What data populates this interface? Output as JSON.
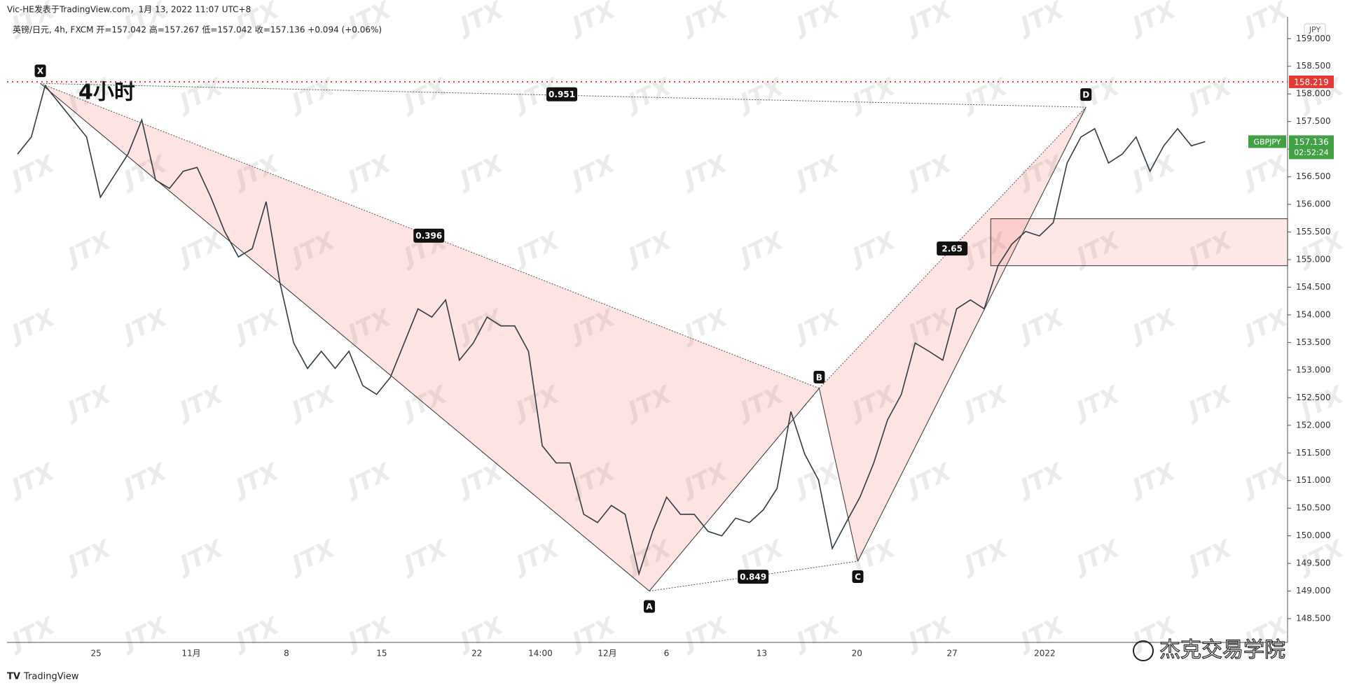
{
  "header": {
    "byline": "Vic-HE发表于TradingView.com，1月 13, 2022 11:07 UTC+8",
    "legend": "英镑/日元, 4h, FXCM  开=157.042  高=157.267  低=157.042  收=157.136  +0.094 (+0.06%)",
    "currency": "JPY"
  },
  "chart_data": {
    "type": "line",
    "title": "4小时",
    "color": "#2f3b45",
    "values": [
      156.91,
      157.22,
      158.15,
      157.84,
      157.53,
      157.22,
      156.13,
      156.52,
      156.91,
      157.53,
      156.44,
      156.29,
      156.6,
      156.67,
      156.13,
      155.51,
      155.05,
      155.2,
      156.05,
      154.58,
      153.49,
      153.03,
      153.34,
      153.03,
      153.34,
      152.72,
      152.56,
      152.87,
      153.49,
      154.11,
      153.96,
      154.27,
      153.18,
      153.49,
      153.96,
      153.8,
      153.8,
      153.34,
      151.63,
      151.32,
      151.32,
      150.39,
      150.24,
      150.55,
      150.39,
      149.31,
      150.08,
      150.7,
      150.39,
      150.39,
      150.08,
      150.0,
      150.32,
      150.24,
      150.47,
      150.86,
      152.25,
      151.48,
      151.01,
      149.77,
      150.24,
      150.7,
      151.32,
      152.1,
      152.56,
      153.49,
      153.34,
      153.18,
      154.11,
      154.27,
      154.11,
      154.89,
      155.28,
      155.51,
      155.43,
      155.67,
      156.75,
      157.22,
      157.37,
      156.75,
      156.91,
      157.22,
      156.6,
      157.06,
      157.37,
      157.06,
      157.136
    ],
    "x_labels": [
      "25",
      "11月",
      "8",
      "15",
      "22",
      "14:00",
      "12月",
      "6",
      "13",
      "20",
      "27",
      "2022"
    ],
    "ylim": [
      148.07,
      159.39
    ],
    "yticks": [
      {
        "value": 148.5,
        "label": "148.500"
      },
      {
        "value": 149,
        "label": "149.000"
      },
      {
        "value": 149.5,
        "label": "149.500"
      },
      {
        "value": 150,
        "label": "150.000"
      },
      {
        "value": 150.5,
        "label": "150.500"
      },
      {
        "value": 151,
        "label": "151.000"
      },
      {
        "value": 151.5,
        "label": "151.500"
      },
      {
        "value": 152,
        "label": "152.000"
      },
      {
        "value": 152.5,
        "label": "152.500"
      },
      {
        "value": 153,
        "label": "153.000"
      },
      {
        "value": 153.5,
        "label": "153.500"
      },
      {
        "value": 154,
        "label": "154.000"
      },
      {
        "value": 154.5,
        "label": "154.500"
      },
      {
        "value": 155,
        "label": "155.000"
      },
      {
        "value": 155.5,
        "label": "155.500"
      },
      {
        "value": 156,
        "label": "156.000"
      },
      {
        "value": 156.5,
        "label": "156.500"
      },
      {
        "value": 157,
        "label": "157.000"
      },
      {
        "value": 157.5,
        "label": "157.500"
      },
      {
        "value": 158,
        "label": "158.000"
      },
      {
        "value": 158.5,
        "label": "158.500"
      },
      {
        "value": 159,
        "label": "159.000"
      }
    ],
    "pattern": {
      "names": [
        "X",
        "A",
        "B",
        "C",
        "D"
      ],
      "values": [
        158.19,
        149.0,
        152.67,
        149.54,
        157.76
      ],
      "ratios": [
        0.951,
        0.396,
        0.849,
        2.65
      ]
    },
    "zone": [
      154.89,
      155.74
    ],
    "alert_level": 158.219,
    "last_price": {
      "symbol": "GBPJPY",
      "value": 157.136,
      "countdown": "02:52:24"
    },
    "watermark": "JTX"
  },
  "footer": {
    "brand": "TradingView",
    "credit": "杰克交易学院"
  }
}
